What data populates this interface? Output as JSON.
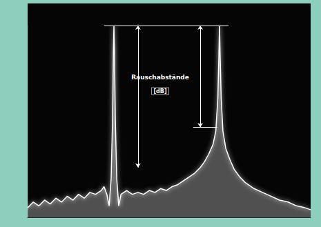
{
  "chart_data": {
    "type": "line",
    "color": "#ffffff",
    "x": [
      0,
      2,
      4,
      6,
      8,
      10,
      12,
      14,
      16,
      18,
      20,
      22,
      24,
      26,
      27,
      28,
      28.8,
      29.5,
      30,
      30.3,
      30.5,
      30.7,
      31,
      31.5,
      32.2,
      33,
      35,
      37,
      39,
      41,
      43,
      45,
      47,
      49,
      51,
      53,
      55,
      57,
      59,
      61,
      62.5,
      64,
      65.5,
      66.5,
      67.2,
      67.6,
      67.8,
      68,
      68.4,
      69,
      70,
      71.5,
      73,
      75,
      77,
      80,
      83,
      86,
      89,
      92,
      95,
      98,
      100
    ],
    "values": [
      5,
      8,
      6,
      9,
      7,
      10,
      8,
      11,
      9,
      12,
      10,
      13,
      12,
      14,
      16,
      12,
      6,
      20,
      50,
      85,
      100,
      85,
      50,
      20,
      6,
      12,
      14,
      12,
      13,
      12,
      14,
      13,
      15,
      14,
      16,
      17,
      19,
      21,
      23,
      26,
      29,
      33,
      38,
      45,
      62,
      85,
      100,
      85,
      62,
      45,
      36,
      30,
      25,
      21,
      18,
      15,
      13,
      11,
      9,
      8,
      6,
      5,
      4
    ],
    "xlim": [
      0,
      100
    ],
    "ylim": [
      0,
      100
    ],
    "xticks": [],
    "yticks": [],
    "grid": false,
    "tick_labels": false,
    "reference_line": {
      "y": 26
    },
    "levels": [
      {
        "y": 100,
        "x": [
          27,
          71
        ]
      },
      {
        "y": 47,
        "x": [
          58.5,
          67
        ]
      }
    ],
    "noise_distances": [
      {
        "x": 39,
        "from": 100,
        "to": 26
      },
      {
        "x": 61,
        "from": 100,
        "to": 47
      }
    ],
    "annotation": {
      "text": "Rauschabstände",
      "unit": "[dB]"
    }
  }
}
